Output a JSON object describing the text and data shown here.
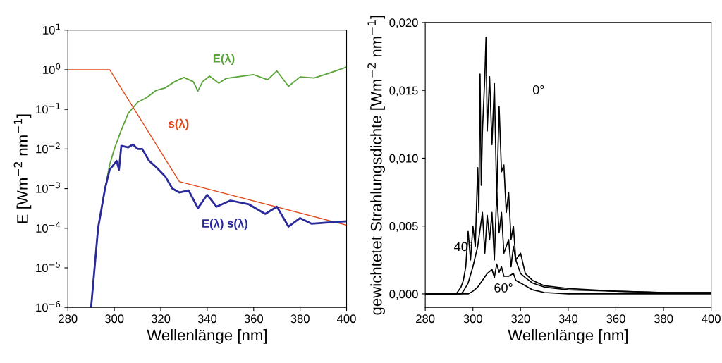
{
  "chart_data": [
    {
      "type": "line",
      "xlabel": "Wellenlänge [nm]",
      "ylabel": "E [Wm$^{−2}$ nm$^{−1}$]",
      "log": "y",
      "xlim": [
        280,
        400
      ],
      "xticks": [
        280,
        300,
        320,
        340,
        360,
        380,
        400
      ],
      "ylim": [
        1e-06,
        10
      ],
      "yticks": [
        {
          "value": 1e-06,
          "label": "10$^{−6}$"
        },
        {
          "value": 1e-05,
          "label": "10$^{−5}$"
        },
        {
          "value": 0.0001,
          "label": "10$^{−4}$"
        },
        {
          "value": 0.001,
          "label": "10$^{−3}$"
        },
        {
          "value": 0.01,
          "label": "10$^{−2}$"
        },
        {
          "value": 0.1,
          "label": "10$^{−1}$"
        },
        {
          "value": 1,
          "label": "10$^{0}$"
        },
        {
          "value": 10,
          "label": "10$^{1}$"
        }
      ],
      "grid": false,
      "marker": "none",
      "series": [
        {
          "color": "#5aa43a",
          "x": [
            290,
            293,
            296,
            298,
            300,
            303,
            306,
            310,
            314,
            318,
            322,
            326,
            330,
            334,
            336,
            338,
            341,
            345,
            348,
            356,
            360,
            366,
            370,
            375,
            380,
            386,
            392,
            400
          ],
          "values": [
            1e-06,
            0.0001,
            0.001,
            0.004,
            0.01,
            0.03,
            0.08,
            0.15,
            0.2,
            0.3,
            0.35,
            0.5,
            0.64,
            0.5,
            0.29,
            0.5,
            0.69,
            0.46,
            0.6,
            0.7,
            0.75,
            0.56,
            0.93,
            0.38,
            0.66,
            0.62,
            0.8,
            1.17
          ]
        },
        {
          "color": "#e04a1c",
          "x": [
            280,
            298,
            328,
            400
          ],
          "values": [
            1,
            1,
            0.0015,
            0.00012
          ]
        },
        {
          "color": "#2a2a9a",
          "x": [
            290,
            293,
            296,
            298,
            301,
            302,
            303,
            306,
            308,
            310,
            312,
            315,
            318,
            322,
            325,
            328,
            332,
            336,
            340,
            344,
            350,
            358,
            365,
            370,
            375,
            380,
            385,
            392,
            400
          ],
          "values": [
            1e-06,
            0.0001,
            0.001,
            0.003,
            0.005,
            0.003,
            0.012,
            0.011,
            0.013,
            0.01,
            0.01,
            0.005,
            0.0035,
            0.002,
            0.001,
            0.0008,
            0.0009,
            0.00032,
            0.0007,
            0.00035,
            0.0005,
            0.0004,
            0.00023,
            0.00035,
            0.00011,
            0.00018,
            0.00013,
            0.00014,
            0.00015
          ]
        }
      ],
      "annotations": [
        "E(λ)",
        "s(λ)",
        "E(λ) s(λ)"
      ]
    },
    {
      "type": "line",
      "xlabel": "Wellenlänge [nm]",
      "ylabel": "gewichtetet Strahlungsdichte [Wm$^{−2}$ nm$^{−1}$]",
      "xlim": [
        280,
        400
      ],
      "xticks": [
        280,
        300,
        320,
        340,
        360,
        380,
        400
      ],
      "ylim": [
        -0.001,
        0.02
      ],
      "yticks": [
        {
          "value": 0,
          "label": "0,000"
        },
        {
          "value": 0.005,
          "label": "0,005"
        },
        {
          "value": 0.01,
          "label": "0,010"
        },
        {
          "value": 0.015,
          "label": "0,015"
        },
        {
          "value": 0.02,
          "label": "0,020"
        }
      ],
      "grid": false,
      "marker": "none",
      "series": [
        {
          "color": "#000000",
          "x": [
            280,
            293,
            295,
            296,
            297,
            298,
            299,
            300,
            301,
            302,
            302.5,
            303,
            303.5,
            304,
            305,
            305.5,
            306,
            307,
            308,
            309,
            310,
            311,
            312,
            313,
            314,
            315,
            316,
            317,
            318,
            320,
            322,
            325,
            330,
            340,
            360,
            380,
            400
          ],
          "values": [
            0,
            0,
            0.0005,
            0.001,
            0.002,
            0.0046,
            0.0025,
            0.005,
            0.0035,
            0.0093,
            0.006,
            0.0162,
            0.008,
            0.012,
            0.016,
            0.0189,
            0.012,
            0.016,
            0.011,
            0.0155,
            0.007,
            0.0138,
            0.009,
            0.0095,
            0.006,
            0.0075,
            0.004,
            0.005,
            0.0025,
            0.003,
            0.0015,
            0.001,
            0.0006,
            0.0004,
            0.0002,
            0.0001,
            0.0001
          ]
        },
        {
          "color": "#000000",
          "x": [
            280,
            295,
            296,
            298,
            300,
            302,
            304,
            305,
            306,
            307,
            308,
            309,
            310,
            311,
            312,
            313,
            315,
            316,
            317,
            318,
            320,
            322,
            325,
            330,
            340,
            360,
            380,
            400
          ],
          "values": [
            0,
            0,
            0.0002,
            0.0008,
            0.002,
            0.0035,
            0.006,
            0.003,
            0.0058,
            0.004,
            0.006,
            0.0025,
            0.0075,
            0.0045,
            0.006,
            0.003,
            0.004,
            0.002,
            0.0035,
            0.0025,
            0.0015,
            0.0012,
            0.0008,
            0.0005,
            0.0003,
            0.0002,
            0.0001,
            0.0001
          ]
        },
        {
          "color": "#000000",
          "x": [
            280,
            298,
            300,
            302,
            304,
            306,
            308,
            309,
            310,
            311,
            312,
            313,
            315,
            317,
            318,
            320,
            325,
            330,
            340,
            360,
            400
          ],
          "values": [
            0,
            0,
            0.0002,
            0.0005,
            0.001,
            0.0015,
            0.0018,
            0.0012,
            0.0022,
            0.0016,
            0.002,
            0.0013,
            0.0013,
            0.0015,
            0.001,
            0.0008,
            0.0003,
            0.0001,
            0,
            0,
            0
          ]
        }
      ],
      "annotations": [
        "0°",
        "40°",
        "60°"
      ]
    }
  ]
}
